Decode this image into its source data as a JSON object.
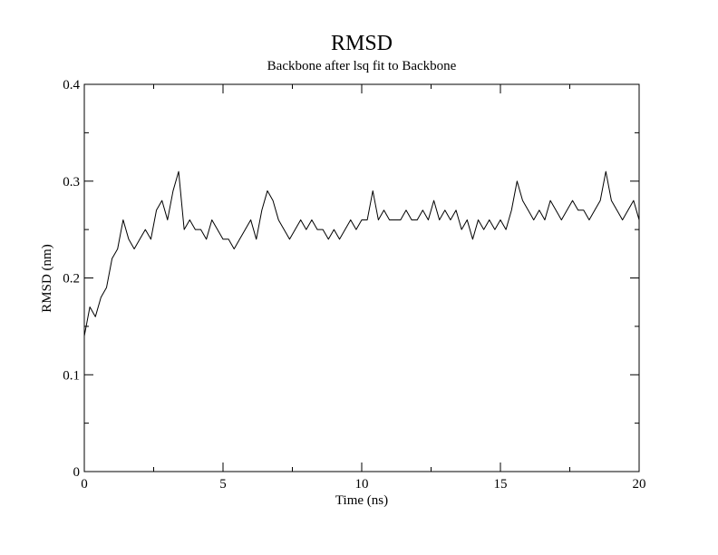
{
  "chart_data": {
    "type": "line",
    "title": "RMSD",
    "subtitle": "Backbone after lsq fit to Backbone",
    "xlabel": "Time (ns)",
    "ylabel": "RMSD (nm)",
    "color": "#000000",
    "x": [
      0,
      0.2,
      0.4,
      0.6,
      0.8,
      1.0,
      1.2,
      1.4,
      1.6,
      1.8,
      2.0,
      2.2,
      2.4,
      2.6,
      2.8,
      3.0,
      3.2,
      3.4,
      3.6,
      3.8,
      4.0,
      4.2,
      4.4,
      4.6,
      4.8,
      5.0,
      5.2,
      5.4,
      5.6,
      5.8,
      6.0,
      6.2,
      6.4,
      6.6,
      6.8,
      7.0,
      7.2,
      7.4,
      7.6,
      7.8,
      8.0,
      8.2,
      8.4,
      8.6,
      8.8,
      9.0,
      9.2,
      9.4,
      9.6,
      9.8,
      10.0,
      10.2,
      10.4,
      10.6,
      10.8,
      11.0,
      11.2,
      11.4,
      11.6,
      11.8,
      12.0,
      12.2,
      12.4,
      12.6,
      12.8,
      13.0,
      13.2,
      13.4,
      13.6,
      13.8,
      14.0,
      14.2,
      14.4,
      14.6,
      14.8,
      15.0,
      15.2,
      15.4,
      15.6,
      15.8,
      16.0,
      16.2,
      16.4,
      16.6,
      16.8,
      17.0,
      17.2,
      17.4,
      17.6,
      17.8,
      18.0,
      18.2,
      18.4,
      18.6,
      18.8,
      19.0,
      19.2,
      19.4,
      19.6,
      19.8,
      20.0
    ],
    "values": [
      0.14,
      0.17,
      0.16,
      0.18,
      0.19,
      0.22,
      0.23,
      0.26,
      0.24,
      0.23,
      0.24,
      0.25,
      0.24,
      0.27,
      0.28,
      0.26,
      0.29,
      0.31,
      0.25,
      0.26,
      0.25,
      0.25,
      0.24,
      0.26,
      0.25,
      0.24,
      0.24,
      0.23,
      0.24,
      0.25,
      0.26,
      0.24,
      0.27,
      0.29,
      0.28,
      0.26,
      0.25,
      0.24,
      0.25,
      0.26,
      0.25,
      0.26,
      0.25,
      0.25,
      0.24,
      0.25,
      0.24,
      0.25,
      0.26,
      0.25,
      0.26,
      0.26,
      0.29,
      0.26,
      0.27,
      0.26,
      0.26,
      0.26,
      0.27,
      0.26,
      0.26,
      0.27,
      0.26,
      0.28,
      0.26,
      0.27,
      0.26,
      0.27,
      0.25,
      0.26,
      0.24,
      0.26,
      0.25,
      0.26,
      0.25,
      0.26,
      0.25,
      0.27,
      0.3,
      0.28,
      0.27,
      0.26,
      0.27,
      0.26,
      0.28,
      0.27,
      0.26,
      0.27,
      0.28,
      0.27,
      0.27,
      0.26,
      0.27,
      0.28,
      0.31,
      0.28,
      0.27,
      0.26,
      0.27,
      0.28,
      0.26
    ],
    "xlim": [
      0,
      20
    ],
    "xticks": [
      0,
      5,
      10,
      15,
      20
    ],
    "ylim": [
      0,
      0.4
    ],
    "yticks": [
      0,
      0.1,
      0.2,
      0.3,
      0.4
    ]
  }
}
